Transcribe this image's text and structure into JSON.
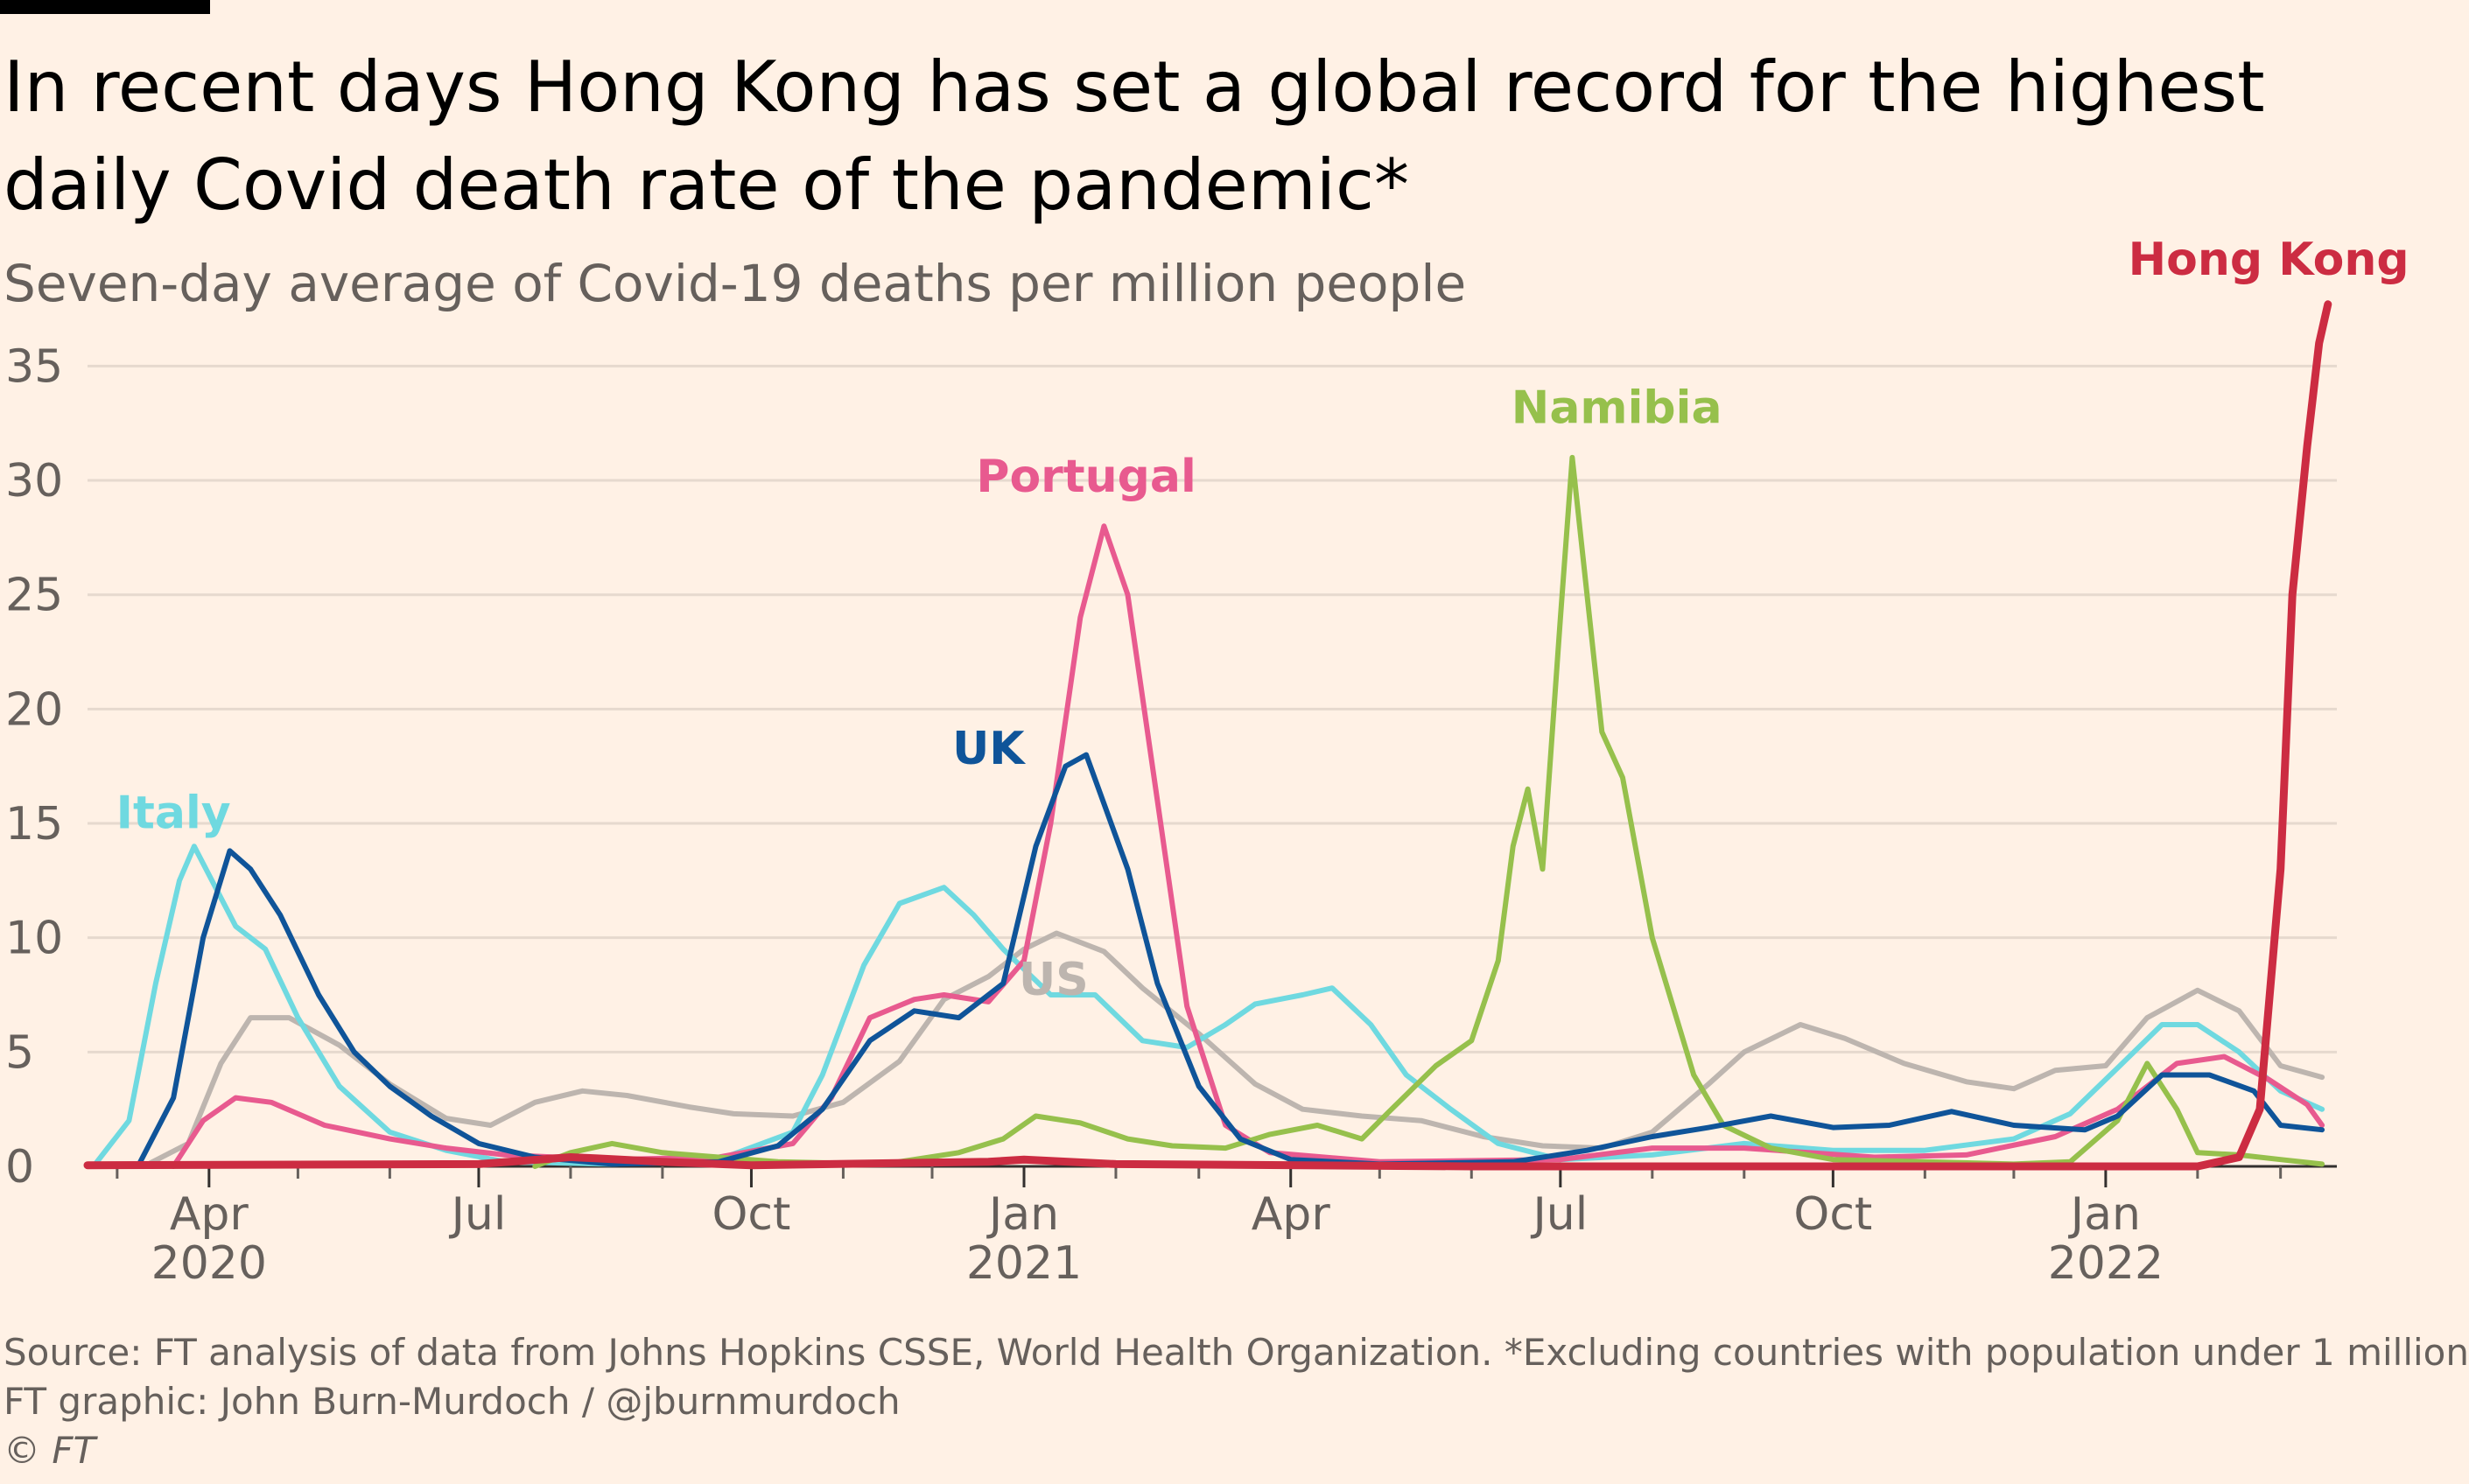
{
  "title": "In recent days Hong Kong has set a global record for the highest daily Covid death rate of the pandemic*",
  "subtitle": "Seven-day average of Covid-19 deaths per million people",
  "source": "Source: FT analysis of data from Johns Hopkins CSSE, World Health Organization. *Excluding countries with population under 1 million",
  "credit": "FT graphic: John Burn-Murdoch / @jburnmurdoch",
  "copyright": "© FT",
  "chart_data": {
    "type": "line",
    "title": "In recent days Hong Kong has set a global record for the highest daily Covid death rate of the pandemic*",
    "subtitle": "Seven-day average of Covid-19 deaths per million people",
    "xlabel": "",
    "ylabel": "",
    "xlim": [
      "2020-02-20",
      "2022-03-20"
    ],
    "ylim": [
      0,
      38
    ],
    "yticks": [
      0,
      5,
      10,
      15,
      20,
      25,
      30,
      35
    ],
    "ytick_labels": [
      "0",
      "5",
      "10",
      "15",
      "20",
      "25",
      "30",
      "35"
    ],
    "xticks": [
      {
        "date": "2020-04-01",
        "label": "Apr",
        "year": "2020"
      },
      {
        "date": "2020-07-01",
        "label": "Jul",
        "year": ""
      },
      {
        "date": "2020-10-01",
        "label": "Oct",
        "year": ""
      },
      {
        "date": "2021-01-01",
        "label": "Jan",
        "year": "2021"
      },
      {
        "date": "2021-04-01",
        "label": "Apr",
        "year": ""
      },
      {
        "date": "2021-07-01",
        "label": "Jul",
        "year": ""
      },
      {
        "date": "2021-10-01",
        "label": "Oct",
        "year": ""
      },
      {
        "date": "2022-01-01",
        "label": "Jan",
        "year": "2022"
      }
    ],
    "minor_ticks": [
      "2020-03-01",
      "2020-05-01",
      "2020-06-01",
      "2020-08-01",
      "2020-09-01",
      "2020-11-01",
      "2020-12-01",
      "2021-02-01",
      "2021-03-01",
      "2021-05-01",
      "2021-06-01",
      "2021-08-01",
      "2021-09-01",
      "2021-11-01",
      "2021-12-01",
      "2022-02-01",
      "2022-03-01"
    ],
    "grid": true,
    "legend": "none (direct labels)",
    "series": [
      {
        "name": "US",
        "color": "#bdb5af",
        "label_date": "2021-01-11",
        "label_value": 7.5,
        "highlight": false,
        "points": [
          [
            "2020-03-10",
            0
          ],
          [
            "2020-03-25",
            1
          ],
          [
            "2020-04-05",
            4.5
          ],
          [
            "2020-04-15",
            6.5
          ],
          [
            "2020-04-28",
            6.5
          ],
          [
            "2020-05-15",
            5.3
          ],
          [
            "2020-06-01",
            3.6
          ],
          [
            "2020-06-20",
            2.1
          ],
          [
            "2020-07-05",
            1.8
          ],
          [
            "2020-07-20",
            2.8
          ],
          [
            "2020-08-05",
            3.3
          ],
          [
            "2020-08-20",
            3.1
          ],
          [
            "2020-09-10",
            2.6
          ],
          [
            "2020-09-25",
            2.3
          ],
          [
            "2020-10-15",
            2.2
          ],
          [
            "2020-11-01",
            2.8
          ],
          [
            "2020-11-20",
            4.6
          ],
          [
            "2020-12-05",
            7.3
          ],
          [
            "2020-12-20",
            8.3
          ],
          [
            "2021-01-01",
            9.5
          ],
          [
            "2021-01-12",
            10.2
          ],
          [
            "2021-01-28",
            9.4
          ],
          [
            "2021-02-10",
            7.8
          ],
          [
            "2021-03-01",
            5.8
          ],
          [
            "2021-03-20",
            3.6
          ],
          [
            "2021-04-05",
            2.5
          ],
          [
            "2021-04-25",
            2.2
          ],
          [
            "2021-05-15",
            2.0
          ],
          [
            "2021-06-05",
            1.3
          ],
          [
            "2021-06-25",
            0.9
          ],
          [
            "2021-07-15",
            0.8
          ],
          [
            "2021-08-01",
            1.5
          ],
          [
            "2021-08-20",
            3.6
          ],
          [
            "2021-09-01",
            5.0
          ],
          [
            "2021-09-20",
            6.2
          ],
          [
            "2021-10-05",
            5.6
          ],
          [
            "2021-10-25",
            4.5
          ],
          [
            "2021-11-15",
            3.7
          ],
          [
            "2021-12-01",
            3.4
          ],
          [
            "2021-12-15",
            4.2
          ],
          [
            "2022-01-01",
            4.4
          ],
          [
            "2022-01-15",
            6.5
          ],
          [
            "2022-02-01",
            7.7
          ],
          [
            "2022-02-15",
            6.8
          ],
          [
            "2022-03-01",
            4.4
          ],
          [
            "2022-03-15",
            3.9
          ]
        ]
      },
      {
        "name": "Italy",
        "color": "#6fd9e0",
        "label_date": "2020-03-20",
        "label_value": 14.8,
        "highlight": false,
        "points": [
          [
            "2020-02-22",
            0
          ],
          [
            "2020-03-05",
            2
          ],
          [
            "2020-03-14",
            8
          ],
          [
            "2020-03-22",
            12.5
          ],
          [
            "2020-03-27",
            14
          ],
          [
            "2020-04-02",
            12.5
          ],
          [
            "2020-04-10",
            10.5
          ],
          [
            "2020-04-20",
            9.5
          ],
          [
            "2020-05-01",
            6.5
          ],
          [
            "2020-05-15",
            3.5
          ],
          [
            "2020-06-01",
            1.5
          ],
          [
            "2020-06-20",
            0.7
          ],
          [
            "2020-07-10",
            0.2
          ],
          [
            "2020-08-15",
            0.1
          ],
          [
            "2020-09-20",
            0.3
          ],
          [
            "2020-10-15",
            1.5
          ],
          [
            "2020-10-25",
            4
          ],
          [
            "2020-11-08",
            8.8
          ],
          [
            "2020-11-20",
            11.5
          ],
          [
            "2020-12-05",
            12.2
          ],
          [
            "2020-12-15",
            11
          ],
          [
            "2020-12-25",
            9.5
          ],
          [
            "2021-01-10",
            7.5
          ],
          [
            "2021-01-25",
            7.5
          ],
          [
            "2021-02-10",
            5.5
          ],
          [
            "2021-02-25",
            5.2
          ],
          [
            "2021-03-10",
            6.2
          ],
          [
            "2021-03-20",
            7.1
          ],
          [
            "2021-04-05",
            7.5
          ],
          [
            "2021-04-15",
            7.8
          ],
          [
            "2021-04-28",
            6.2
          ],
          [
            "2021-05-10",
            4
          ],
          [
            "2021-05-25",
            2.5
          ],
          [
            "2021-06-10",
            1
          ],
          [
            "2021-07-01",
            0.3
          ],
          [
            "2021-08-01",
            0.5
          ],
          [
            "2021-09-01",
            1
          ],
          [
            "2021-10-01",
            0.7
          ],
          [
            "2021-11-01",
            0.7
          ],
          [
            "2021-12-01",
            1.2
          ],
          [
            "2021-12-20",
            2.3
          ],
          [
            "2022-01-05",
            4.3
          ],
          [
            "2022-01-20",
            6.2
          ],
          [
            "2022-02-01",
            6.2
          ],
          [
            "2022-02-15",
            5
          ],
          [
            "2022-03-01",
            3.3
          ],
          [
            "2022-03-15",
            2.5
          ]
        ]
      },
      {
        "name": "Portugal",
        "color": "#e85a8f",
        "label_date": "2021-01-22",
        "label_value": 29.5,
        "highlight": false,
        "points": [
          [
            "2020-03-20",
            0
          ],
          [
            "2020-03-30",
            2
          ],
          [
            "2020-04-10",
            3
          ],
          [
            "2020-04-22",
            2.8
          ],
          [
            "2020-05-10",
            1.8
          ],
          [
            "2020-06-01",
            1.2
          ],
          [
            "2020-06-20",
            0.8
          ],
          [
            "2020-07-10",
            0.5
          ],
          [
            "2020-08-15",
            0.3
          ],
          [
            "2020-09-20",
            0.4
          ],
          [
            "2020-10-15",
            1
          ],
          [
            "2020-10-28",
            3
          ],
          [
            "2020-11-10",
            6.5
          ],
          [
            "2020-11-25",
            7.3
          ],
          [
            "2020-12-05",
            7.5
          ],
          [
            "2020-12-20",
            7.2
          ],
          [
            "2021-01-01",
            9
          ],
          [
            "2021-01-10",
            15
          ],
          [
            "2021-01-20",
            24
          ],
          [
            "2021-01-28",
            28
          ],
          [
            "2021-02-05",
            25
          ],
          [
            "2021-02-15",
            16
          ],
          [
            "2021-02-25",
            7
          ],
          [
            "2021-03-10",
            1.8
          ],
          [
            "2021-03-25",
            0.6
          ],
          [
            "2021-05-01",
            0.2
          ],
          [
            "2021-07-01",
            0.3
          ],
          [
            "2021-08-01",
            0.8
          ],
          [
            "2021-09-01",
            0.8
          ],
          [
            "2021-10-15",
            0.4
          ],
          [
            "2021-11-15",
            0.5
          ],
          [
            "2021-12-15",
            1.3
          ],
          [
            "2022-01-05",
            2.5
          ],
          [
            "2022-01-25",
            4.5
          ],
          [
            "2022-02-10",
            4.8
          ],
          [
            "2022-02-25",
            3.8
          ],
          [
            "2022-03-10",
            2.7
          ],
          [
            "2022-03-15",
            1.8
          ]
        ]
      },
      {
        "name": "Namibia",
        "color": "#96c04c",
        "label_date": "2021-07-20",
        "label_value": 32.5,
        "highlight": false,
        "points": [
          [
            "2020-07-20",
            0
          ],
          [
            "2020-08-01",
            0.6
          ],
          [
            "2020-08-15",
            1
          ],
          [
            "2020-09-01",
            0.6
          ],
          [
            "2020-09-20",
            0.4
          ],
          [
            "2020-10-10",
            0.2
          ],
          [
            "2020-11-15",
            0.1
          ],
          [
            "2020-12-10",
            0.6
          ],
          [
            "2020-12-25",
            1.2
          ],
          [
            "2021-01-05",
            2.2
          ],
          [
            "2021-01-20",
            1.9
          ],
          [
            "2021-02-05",
            1.2
          ],
          [
            "2021-02-20",
            0.9
          ],
          [
            "2021-03-10",
            0.8
          ],
          [
            "2021-03-25",
            1.4
          ],
          [
            "2021-04-10",
            1.8
          ],
          [
            "2021-04-25",
            1.2
          ],
          [
            "2021-05-05",
            2.5
          ],
          [
            "2021-05-20",
            4.4
          ],
          [
            "2021-06-01",
            5.5
          ],
          [
            "2021-06-10",
            9
          ],
          [
            "2021-06-15",
            14
          ],
          [
            "2021-06-20",
            16.5
          ],
          [
            "2021-06-25",
            13
          ],
          [
            "2021-07-01",
            24
          ],
          [
            "2021-07-05",
            31
          ],
          [
            "2021-07-10",
            25
          ],
          [
            "2021-07-15",
            19
          ],
          [
            "2021-07-22",
            17
          ],
          [
            "2021-08-01",
            10
          ],
          [
            "2021-08-15",
            4
          ],
          [
            "2021-08-25",
            1.8
          ],
          [
            "2021-09-10",
            0.8
          ],
          [
            "2021-10-01",
            0.3
          ],
          [
            "2021-11-01",
            0.2
          ],
          [
            "2021-12-01",
            0.1
          ],
          [
            "2021-12-20",
            0.2
          ],
          [
            "2022-01-05",
            2
          ],
          [
            "2022-01-15",
            4.5
          ],
          [
            "2022-01-25",
            2.5
          ],
          [
            "2022-02-01",
            0.6
          ],
          [
            "2022-02-15",
            0.5
          ],
          [
            "2022-03-01",
            0.3
          ],
          [
            "2022-03-15",
            0.1
          ]
        ]
      },
      {
        "name": "UK",
        "color": "#0f5499",
        "label_date": "2020-12-20",
        "label_value": 17.6,
        "highlight": false,
        "points": [
          [
            "2020-03-08",
            0
          ],
          [
            "2020-03-20",
            3
          ],
          [
            "2020-03-30",
            10
          ],
          [
            "2020-04-08",
            13.8
          ],
          [
            "2020-04-15",
            13
          ],
          [
            "2020-04-25",
            11
          ],
          [
            "2020-05-08",
            7.5
          ],
          [
            "2020-05-20",
            5
          ],
          [
            "2020-06-01",
            3.5
          ],
          [
            "2020-06-15",
            2.2
          ],
          [
            "2020-07-01",
            1
          ],
          [
            "2020-07-20",
            0.4
          ],
          [
            "2020-08-15",
            0.1
          ],
          [
            "2020-09-20",
            0.2
          ],
          [
            "2020-10-10",
            0.9
          ],
          [
            "2020-10-25",
            2.5
          ],
          [
            "2020-11-10",
            5.5
          ],
          [
            "2020-11-25",
            6.8
          ],
          [
            "2020-12-10",
            6.5
          ],
          [
            "2020-12-25",
            8
          ],
          [
            "2021-01-05",
            14
          ],
          [
            "2021-01-15",
            17.5
          ],
          [
            "2021-01-22",
            18
          ],
          [
            "2021-02-05",
            13
          ],
          [
            "2021-02-15",
            8
          ],
          [
            "2021-03-01",
            3.5
          ],
          [
            "2021-03-15",
            1.2
          ],
          [
            "2021-04-01",
            0.3
          ],
          [
            "2021-05-01",
            0.1
          ],
          [
            "2021-06-15",
            0.2
          ],
          [
            "2021-07-10",
            0.7
          ],
          [
            "2021-08-01",
            1.3
          ],
          [
            "2021-08-20",
            1.7
          ],
          [
            "2021-09-10",
            2.2
          ],
          [
            "2021-10-01",
            1.7
          ],
          [
            "2021-10-20",
            1.8
          ],
          [
            "2021-11-10",
            2.4
          ],
          [
            "2021-12-01",
            1.8
          ],
          [
            "2021-12-25",
            1.6
          ],
          [
            "2022-01-05",
            2.2
          ],
          [
            "2022-01-20",
            4
          ],
          [
            "2022-02-05",
            4
          ],
          [
            "2022-02-20",
            3.3
          ],
          [
            "2022-03-01",
            1.8
          ],
          [
            "2022-03-15",
            1.6
          ]
        ]
      },
      {
        "name": "Hong Kong",
        "color": "#cc2c42",
        "label_date": "2022-02-25",
        "label_value": 39,
        "highlight": true,
        "points": [
          [
            "2020-02-20",
            0.05
          ],
          [
            "2020-07-01",
            0.1
          ],
          [
            "2020-08-01",
            0.4
          ],
          [
            "2020-08-10",
            0.35
          ],
          [
            "2020-09-01",
            0.2
          ],
          [
            "2020-10-01",
            0.05
          ],
          [
            "2020-12-20",
            0.2
          ],
          [
            "2021-01-01",
            0.3
          ],
          [
            "2021-02-01",
            0.1
          ],
          [
            "2021-06-01",
            0
          ],
          [
            "2021-12-01",
            0
          ],
          [
            "2022-02-01",
            0
          ],
          [
            "2022-02-15",
            0.4
          ],
          [
            "2022-02-22",
            2.5
          ],
          [
            "2022-03-01",
            13
          ],
          [
            "2022-03-05",
            25
          ],
          [
            "2022-03-10",
            31.5
          ],
          [
            "2022-03-14",
            36
          ],
          [
            "2022-03-17",
            37.7
          ]
        ]
      }
    ]
  }
}
